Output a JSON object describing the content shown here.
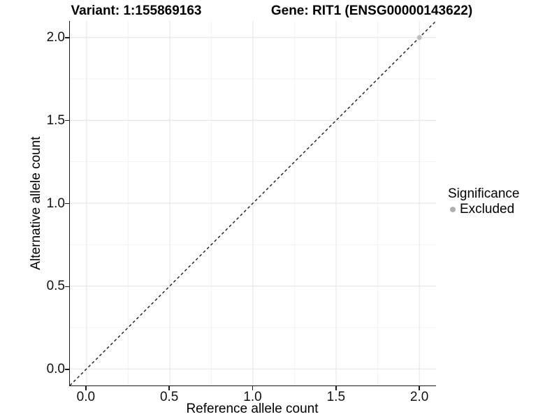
{
  "titles": {
    "variant": "Variant: 1:155869163",
    "gene": "Gene: RIT1 (ENSG00000143622)"
  },
  "x_axis": {
    "label": "Reference allele count",
    "tick_labels": [
      "0.0",
      "0.5",
      "1.0",
      "1.5",
      "2.0"
    ]
  },
  "y_axis": {
    "label": "Alternative allele count",
    "tick_labels": [
      "0.0",
      "0.5",
      "1.0",
      "1.5",
      "2.0"
    ]
  },
  "legend": {
    "title": "Significance",
    "items": [
      {
        "label": "Excluded",
        "color": "#b0b0b0"
      }
    ]
  },
  "colors": {
    "background": "#ffffff",
    "axis_line": "#1a1a1a",
    "grid_major": "#e7e7e7",
    "grid_minor": "#f3f3f3",
    "tick_text": "#111111",
    "dashed_line": "#1a1a1a",
    "point": "#bdbdbd"
  },
  "chart_data": {
    "type": "scatter",
    "title": "Variant: 1:155869163 | Gene: RIT1 (ENSG00000143622)",
    "xlabel": "Reference allele count",
    "ylabel": "Alternative allele count",
    "xlim": [
      -0.1,
      2.1
    ],
    "ylim": [
      -0.1,
      2.1
    ],
    "x_major_ticks": [
      0.0,
      0.5,
      1.0,
      1.5,
      2.0
    ],
    "y_major_ticks": [
      0.0,
      0.5,
      1.0,
      1.5,
      2.0
    ],
    "x_minor_gridlines": [
      0.25,
      0.75,
      1.25,
      1.75
    ],
    "y_minor_gridlines": [
      0.25,
      0.75,
      1.25,
      1.75
    ],
    "grid": "major+minor",
    "legend_position": "right-middle",
    "series": [
      {
        "name": "Excluded",
        "marker": "circle",
        "marker_radius_px": 3.5,
        "color": "#bdbdbd",
        "points": [
          [
            2.0,
            2.0
          ]
        ]
      }
    ],
    "reference_line": {
      "type": "identity y=x",
      "style": "dashed",
      "color": "#1a1a1a",
      "from": [
        -0.1,
        -0.1
      ],
      "to": [
        2.1,
        2.1
      ]
    }
  }
}
